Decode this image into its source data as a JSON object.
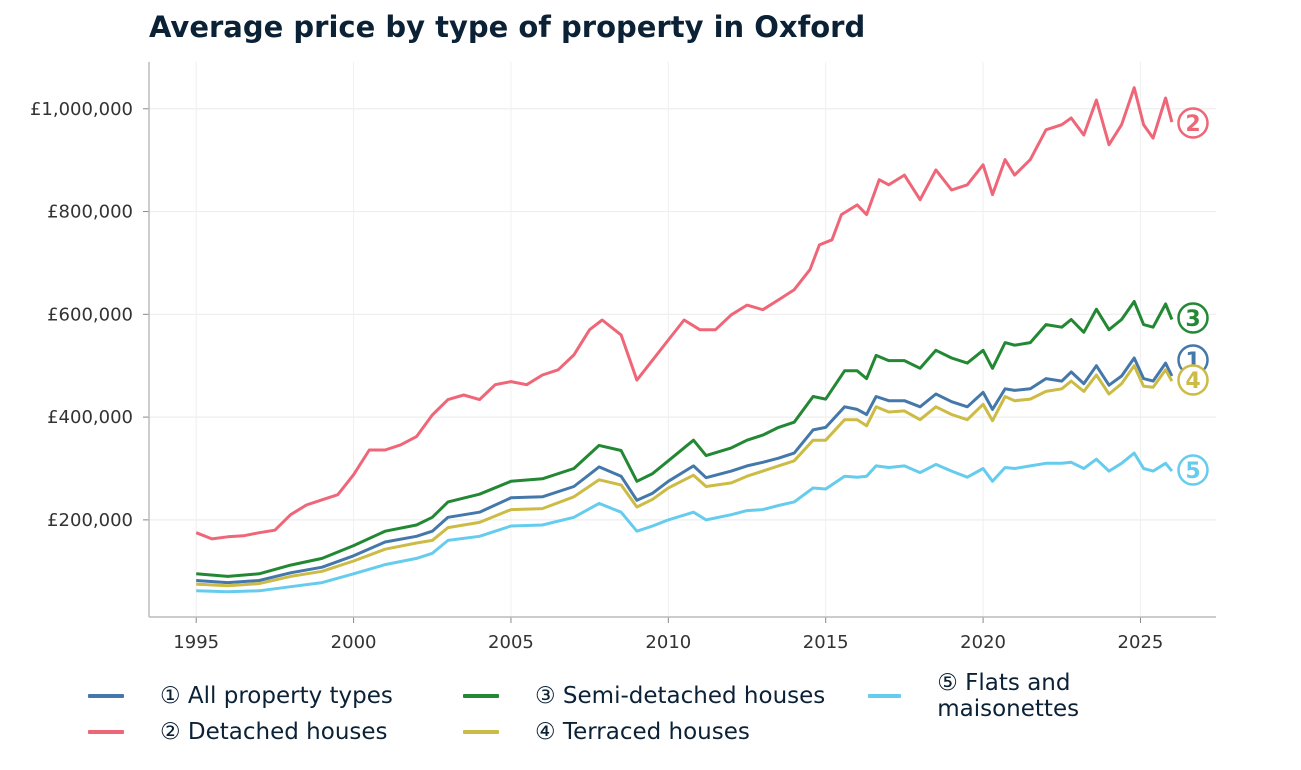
{
  "chart_data": {
    "type": "line",
    "title": "Average price by type of property in Oxford",
    "xlabel": "",
    "ylabel": "",
    "xlim": [
      1993.5,
      2027.4
    ],
    "ylim": [
      11000,
      1091000
    ],
    "x_ticks": [
      1995,
      2000,
      2005,
      2010,
      2015,
      2020,
      2025
    ],
    "y_ticks": [
      200000,
      400000,
      600000,
      800000,
      1000000
    ],
    "y_tick_labels": [
      "£200,000",
      "£400,000",
      "£600,000",
      "£800,000",
      "£1,000,000"
    ],
    "grid": true,
    "legend_position": "bottom",
    "series": [
      {
        "name": "① All property types",
        "end_label": "1",
        "color": "#4477aa",
        "x": [
          1995,
          1996,
          1997,
          1998,
          1999,
          2000,
          2001,
          2002,
          2002.5,
          2003,
          2004,
          2005,
          2006,
          2007,
          2007.8,
          2008.5,
          2009,
          2009.5,
          2010,
          2010.8,
          2011.2,
          2012,
          2012.5,
          2013,
          2013.5,
          2014,
          2014.6,
          2015,
          2015.6,
          2016,
          2016.3,
          2016.6,
          2017,
          2017.5,
          2018,
          2018.5,
          2019,
          2019.5,
          2020,
          2020.3,
          2020.7,
          2021,
          2021.5,
          2022,
          2022.5,
          2022.8,
          2023.2,
          2023.6,
          2024,
          2024.4,
          2024.8,
          2025.1,
          2025.4,
          2025.8,
          2026
        ],
        "y": [
          82000,
          78000,
          82000,
          97000,
          108000,
          130000,
          157000,
          168000,
          178000,
          205000,
          215000,
          243000,
          245000,
          265000,
          303000,
          285000,
          238000,
          252000,
          275000,
          305000,
          282000,
          295000,
          305000,
          312000,
          320000,
          330000,
          375000,
          380000,
          420000,
          415000,
          405000,
          440000,
          432000,
          432000,
          420000,
          445000,
          430000,
          420000,
          448000,
          415000,
          455000,
          452000,
          455000,
          475000,
          470000,
          488000,
          465000,
          500000,
          462000,
          480000,
          515000,
          475000,
          470000,
          505000,
          480000
        ]
      },
      {
        "name": "② Detached houses",
        "end_label": "2",
        "color": "#ee6677",
        "x": [
          1995,
          1995.5,
          1996,
          1996.5,
          1997,
          1997.5,
          1998,
          1998.5,
          1999,
          1999.5,
          2000,
          2000.5,
          2001,
          2001.5,
          2002,
          2002.5,
          2003,
          2003.5,
          2004,
          2004.5,
          2005,
          2005.5,
          2006,
          2006.5,
          2007,
          2007.5,
          2007.9,
          2008.5,
          2009,
          2009.5,
          2010,
          2010.5,
          2011,
          2011.5,
          2012,
          2012.5,
          2013,
          2013.5,
          2014,
          2014.5,
          2014.8,
          2015.2,
          2015.5,
          2016,
          2016.3,
          2016.7,
          2017,
          2017.5,
          2018,
          2018.5,
          2019,
          2019.5,
          2020,
          2020.3,
          2020.7,
          2021,
          2021.5,
          2022,
          2022.5,
          2022.8,
          2023.2,
          2023.6,
          2024,
          2024.4,
          2024.8,
          2025.1,
          2025.4,
          2025.8,
          2026
        ],
        "y": [
          175000,
          163000,
          167000,
          169000,
          175000,
          180000,
          210000,
          229000,
          239000,
          249000,
          288000,
          336000,
          336000,
          346000,
          362000,
          404000,
          434000,
          443000,
          434000,
          463000,
          469000,
          463000,
          482000,
          492000,
          521000,
          570000,
          589000,
          560000,
          472000,
          511000,
          550000,
          589000,
          570000,
          570000,
          599000,
          618000,
          609000,
          628000,
          648000,
          687000,
          735000,
          745000,
          794000,
          813000,
          794000,
          862000,
          852000,
          871000,
          823000,
          881000,
          842000,
          852000,
          891000,
          833000,
          901000,
          871000,
          901000,
          959000,
          969000,
          982000,
          949000,
          1017000,
          930000,
          969000,
          1041000,
          969000,
          943000,
          1021000,
          974000
        ]
      },
      {
        "name": "③ Semi-detached houses",
        "end_label": "3",
        "color": "#228833",
        "x": [
          1995,
          1996,
          1997,
          1998,
          1999,
          2000,
          2001,
          2002,
          2002.5,
          2003,
          2004,
          2005,
          2006,
          2007,
          2007.8,
          2008.5,
          2009,
          2009.5,
          2010,
          2010.8,
          2011.2,
          2012,
          2012.5,
          2013,
          2013.5,
          2014,
          2014.6,
          2015,
          2015.6,
          2016,
          2016.3,
          2016.6,
          2017,
          2017.5,
          2018,
          2018.5,
          2019,
          2019.5,
          2020,
          2020.3,
          2020.7,
          2021,
          2021.5,
          2022,
          2022.5,
          2022.8,
          2023.2,
          2023.6,
          2024,
          2024.4,
          2024.8,
          2025.1,
          2025.4,
          2025.8,
          2026
        ],
        "y": [
          95000,
          90000,
          95000,
          112000,
          125000,
          150000,
          178000,
          190000,
          205000,
          235000,
          250000,
          275000,
          280000,
          300000,
          345000,
          335000,
          275000,
          290000,
          315000,
          355000,
          325000,
          340000,
          355000,
          365000,
          380000,
          390000,
          440000,
          435000,
          490000,
          490000,
          475000,
          520000,
          510000,
          510000,
          495000,
          530000,
          515000,
          505000,
          530000,
          495000,
          545000,
          540000,
          545000,
          580000,
          575000,
          590000,
          565000,
          610000,
          570000,
          590000,
          625000,
          580000,
          575000,
          620000,
          590000
        ]
      },
      {
        "name": "④ Terraced houses",
        "end_label": "4",
        "color": "#ccbb44",
        "x": [
          1995,
          1996,
          1997,
          1998,
          1999,
          2000,
          2001,
          2002,
          2002.5,
          2003,
          2004,
          2005,
          2006,
          2007,
          2007.8,
          2008.5,
          2009,
          2009.5,
          2010,
          2010.8,
          2011.2,
          2012,
          2012.5,
          2013,
          2013.5,
          2014,
          2014.6,
          2015,
          2015.6,
          2016,
          2016.3,
          2016.6,
          2017,
          2017.5,
          2018,
          2018.5,
          2019,
          2019.5,
          2020,
          2020.3,
          2020.7,
          2021,
          2021.5,
          2022,
          2022.5,
          2022.8,
          2023.2,
          2023.6,
          2024,
          2024.4,
          2024.8,
          2025.1,
          2025.4,
          2025.8,
          2026
        ],
        "y": [
          75000,
          72000,
          76000,
          90000,
          100000,
          120000,
          143000,
          155000,
          160000,
          185000,
          195000,
          220000,
          222000,
          245000,
          278000,
          268000,
          225000,
          240000,
          262000,
          287000,
          265000,
          272000,
          285000,
          295000,
          305000,
          315000,
          355000,
          355000,
          395000,
          395000,
          383000,
          420000,
          410000,
          412000,
          395000,
          420000,
          405000,
          395000,
          425000,
          393000,
          440000,
          432000,
          435000,
          450000,
          455000,
          470000,
          450000,
          482000,
          445000,
          465000,
          500000,
          460000,
          458000,
          492000,
          470000
        ]
      },
      {
        "name": "⑤ Flats and maisonettes",
        "end_label": "5",
        "color": "#66ccee",
        "x": [
          1995,
          1996,
          1997,
          1998,
          1999,
          2000,
          2001,
          2002,
          2002.5,
          2003,
          2004,
          2005,
          2006,
          2007,
          2007.8,
          2008.5,
          2009,
          2009.5,
          2010,
          2010.8,
          2011.2,
          2012,
          2012.5,
          2013,
          2013.5,
          2014,
          2014.6,
          2015,
          2015.6,
          2016,
          2016.3,
          2016.6,
          2017,
          2017.5,
          2018,
          2018.5,
          2019,
          2019.5,
          2020,
          2020.3,
          2020.7,
          2021,
          2021.5,
          2022,
          2022.5,
          2022.8,
          2023.2,
          2023.6,
          2024,
          2024.4,
          2024.8,
          2025.1,
          2025.4,
          2025.8,
          2026
        ],
        "y": [
          62000,
          60000,
          62000,
          70000,
          78000,
          95000,
          113000,
          125000,
          135000,
          160000,
          168000,
          188000,
          190000,
          205000,
          232000,
          215000,
          178000,
          188000,
          200000,
          215000,
          200000,
          210000,
          218000,
          220000,
          228000,
          235000,
          262000,
          260000,
          285000,
          283000,
          285000,
          305000,
          302000,
          305000,
          292000,
          308000,
          295000,
          283000,
          300000,
          275000,
          302000,
          300000,
          305000,
          310000,
          310000,
          312000,
          300000,
          318000,
          295000,
          310000,
          330000,
          300000,
          295000,
          310000,
          295000
        ]
      }
    ]
  }
}
